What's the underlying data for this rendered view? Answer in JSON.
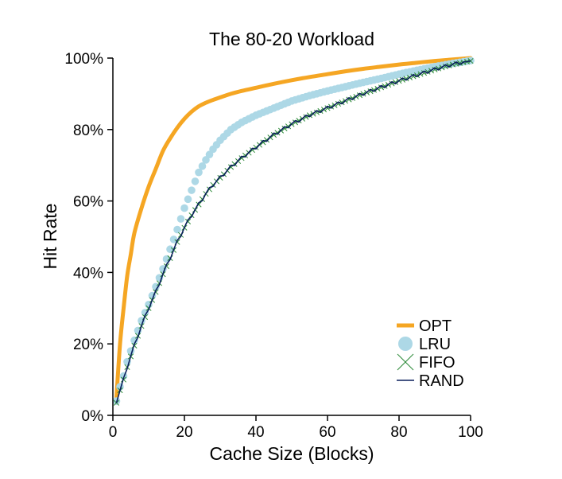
{
  "chart_data": {
    "type": "line",
    "title": "The 80-20 Workload",
    "xlabel": "Cache Size (Blocks)",
    "ylabel": "Hit Rate",
    "xlim": [
      0,
      100
    ],
    "ylim": [
      0,
      100
    ],
    "x_ticks": [
      0,
      20,
      40,
      60,
      80,
      100
    ],
    "x_tick_labels": [
      "0",
      "20",
      "40",
      "60",
      "80",
      "100"
    ],
    "y_ticks": [
      0,
      20,
      40,
      60,
      80,
      100
    ],
    "y_tick_labels": [
      "0%",
      "20%",
      "40%",
      "60%",
      "80%",
      "100%"
    ],
    "grid": false,
    "legend_position": "bottom-right",
    "x": [
      1,
      2,
      3,
      4,
      5,
      6,
      8,
      10,
      12,
      14,
      16,
      18,
      20,
      22,
      24,
      26,
      28,
      30,
      33,
      36,
      40,
      45,
      50,
      55,
      60,
      65,
      70,
      75,
      80,
      85,
      90,
      95,
      100
    ],
    "series": [
      {
        "name": "OPT",
        "color": "#f5a623",
        "style": "thick-line",
        "values": [
          5,
          20,
          30,
          39,
          45,
          51,
          58,
          64,
          69,
          74,
          77.5,
          80.5,
          83,
          85,
          86.5,
          87.5,
          88.3,
          89,
          90,
          90.8,
          91.7,
          92.8,
          93.8,
          94.7,
          95.5,
          96.3,
          97,
          97.6,
          98.2,
          98.7,
          99.2,
          99.6,
          100
        ]
      },
      {
        "name": "LRU",
        "color": "#add8e6",
        "style": "circles",
        "values": [
          4,
          8,
          11,
          15,
          18,
          21,
          26.5,
          31,
          36,
          41,
          46.5,
          52,
          58,
          63,
          68,
          71.5,
          74.5,
          77,
          80,
          82,
          84,
          86,
          88,
          89.5,
          90.8,
          92,
          93.2,
          94.3,
          95.5,
          96.6,
          97.6,
          98.5,
          99.3
        ]
      },
      {
        "name": "FIFO",
        "color": "#2e8b3a",
        "style": "crosses",
        "values": [
          3.5,
          7,
          10,
          13.5,
          16.5,
          19.5,
          25,
          30,
          34.5,
          39.5,
          44,
          48.5,
          52.5,
          56,
          59,
          62,
          64.5,
          66.5,
          69.5,
          72,
          75,
          78.5,
          81.5,
          84,
          86,
          88,
          90,
          91.8,
          93.6,
          95.2,
          96.8,
          98.2,
          99.2
        ]
      },
      {
        "name": "RAND",
        "color": "#0a1f5c",
        "style": "line",
        "values": [
          3.5,
          7,
          10,
          13.5,
          16.5,
          19.5,
          25,
          30,
          34.5,
          39.5,
          44,
          48.5,
          52.5,
          56,
          59,
          62,
          64.5,
          66.5,
          69.5,
          72,
          75,
          78.5,
          81.5,
          84,
          86,
          88,
          90,
          91.8,
          93.6,
          95.2,
          96.8,
          98.2,
          99.2
        ]
      }
    ]
  }
}
